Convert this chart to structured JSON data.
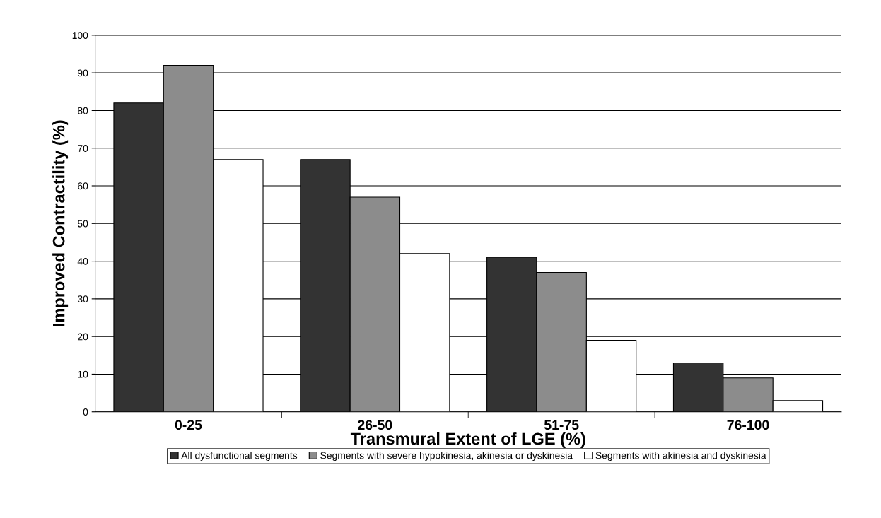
{
  "chart_data": {
    "type": "bar",
    "xlabel": "Transmural Extent of LGE (%)",
    "ylabel": "Improved Contractility (%)",
    "categories": [
      "0-25",
      "26-50",
      "51-75",
      "76-100"
    ],
    "series": [
      {
        "name": "All dysfunctional segments",
        "color": "#333333",
        "values": [
          82,
          67,
          41,
          13
        ]
      },
      {
        "name": "Segments with severe hypokinesia, akinesia or dyskinesia",
        "color": "#8c8c8c",
        "values": [
          92,
          57,
          37,
          9
        ]
      },
      {
        "name": "Segments with akinesia and dyskinesia",
        "color": "#ffffff",
        "values": [
          67,
          42,
          19,
          3
        ]
      }
    ],
    "ylim": [
      0,
      100
    ],
    "yticks": [
      0,
      10,
      20,
      30,
      40,
      50,
      60,
      70,
      80,
      90,
      100
    ],
    "grid": "y",
    "legend": "bottom"
  }
}
